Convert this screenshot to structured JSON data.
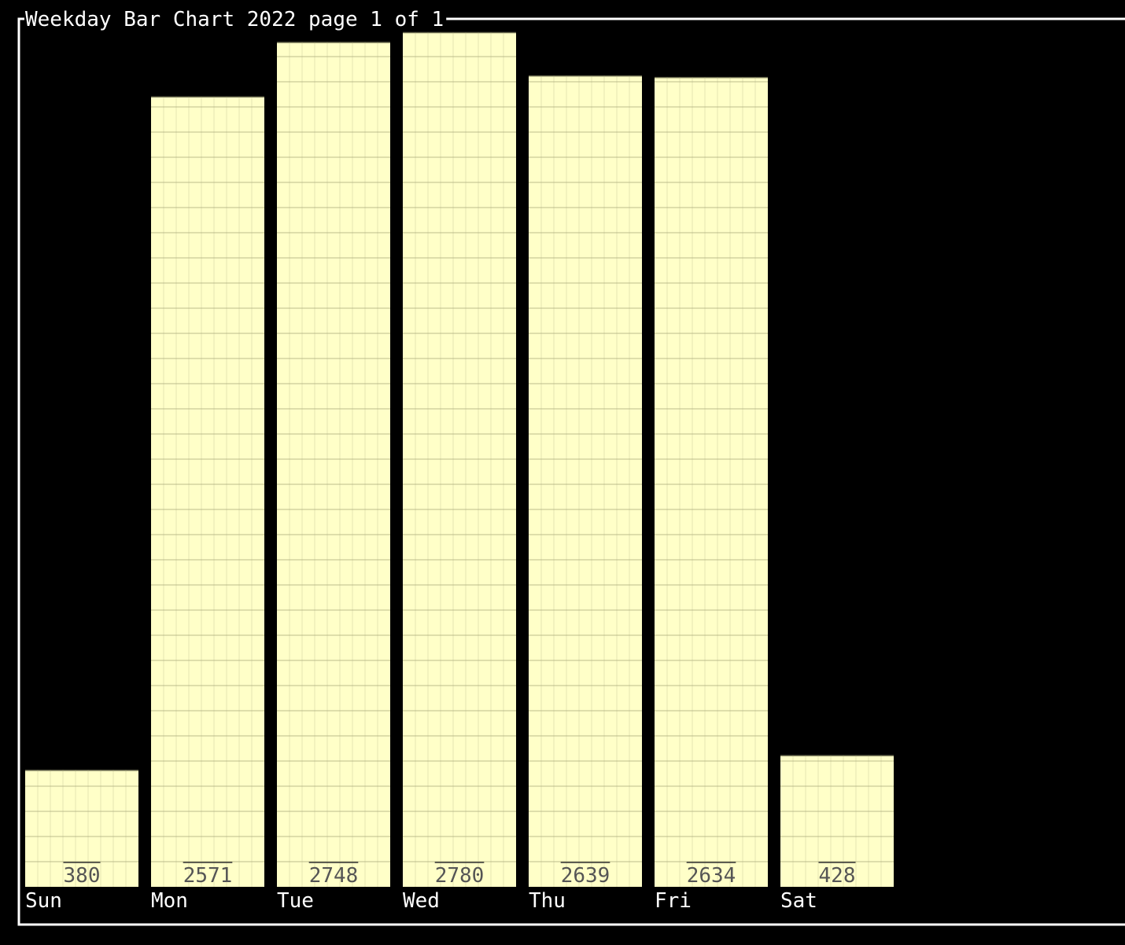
{
  "chart_data": {
    "type": "bar",
    "title": "Weekday Bar Chart 2022 page 1 of 1",
    "categories": [
      "Sun",
      "Mon",
      "Tue",
      "Wed",
      "Thu",
      "Fri",
      "Sat"
    ],
    "values": [
      380,
      2571,
      2748,
      2780,
      2639,
      2634,
      428
    ],
    "xlabel": "",
    "ylabel": "",
    "ylim": [
      0,
      2780
    ],
    "grid": true,
    "legend": "none"
  },
  "colors": {
    "background": "#000000",
    "frame": "#ffffff",
    "bar_fill": "#ffffc8",
    "grid_line": "#a6a67a",
    "value_label": "#555555",
    "category_label": "#ffffff",
    "title_text": "#ffffff"
  }
}
